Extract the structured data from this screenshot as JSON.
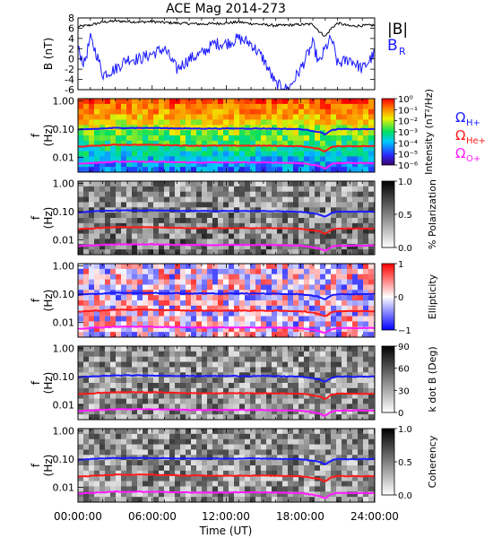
{
  "chart_data": {
    "title": "ACE Mag 2014-273",
    "x_axis": {
      "label": "Time (UT)",
      "ticks": [
        "00:00:00",
        "06:00:00",
        "12:00:00",
        "18:00:00",
        "24:00:00"
      ],
      "range_hours": [
        0,
        24
      ]
    },
    "panels": [
      {
        "type": "line",
        "ylabel": "B (nT)",
        "ylim": [
          -6,
          8
        ],
        "yticks": [
          "8",
          "6",
          "4",
          "2",
          "0",
          "-2",
          "-4",
          "-6"
        ],
        "series": [
          {
            "name": "|B|",
            "color": "#000000",
            "x": [
              0,
              1,
              2,
              3,
              4,
              5,
              6,
              7,
              8,
              9,
              10,
              11,
              12,
              13,
              14,
              15,
              16,
              17,
              18,
              19,
              19.5,
              20,
              20.5,
              21,
              22,
              23,
              24
            ],
            "y": [
              6.3,
              6.6,
              7.2,
              7.4,
              7.3,
              7.2,
              7.3,
              7.1,
              7.0,
              6.9,
              6.8,
              6.9,
              7.0,
              7.2,
              6.9,
              6.7,
              6.5,
              6.6,
              6.7,
              6.8,
              5.4,
              4.4,
              6.0,
              7.0,
              6.4,
              6.5,
              6.6
            ]
          },
          {
            "name": "B_R",
            "color": "#1a1aff",
            "x": [
              0,
              0.5,
              1,
              1.5,
              2,
              3,
              4,
              5,
              6,
              7,
              8,
              9,
              10,
              11,
              12,
              13,
              14,
              15,
              16,
              17,
              18,
              19,
              19.5,
              20,
              20.5,
              21,
              22,
              23,
              24
            ],
            "y": [
              2,
              -1,
              4,
              1,
              -3,
              -2,
              0,
              0,
              1,
              2,
              -2,
              0,
              1,
              3,
              3,
              4,
              3,
              0,
              -5,
              -6,
              -2,
              3,
              -1,
              2,
              4,
              -1,
              0,
              -2,
              1
            ]
          }
        ],
        "legend": [
          "|B|",
          "B",
          "R"
        ]
      },
      {
        "type": "heatmap",
        "ylabel": "f (Hz)",
        "yscale": "log",
        "yticks": [
          "1.00",
          "0.10",
          "0.01"
        ],
        "colorbar": {
          "label": "Intensity (nT²/Hz)",
          "ticks": [
            "10⁰",
            "10⁻¹",
            "10⁻²",
            "10⁻³",
            "10⁻⁴",
            "10⁻⁵",
            "10⁻⁶"
          ]
        },
        "legend": [
          {
            "label": "Ω",
            "sub": "H+",
            "color": "#1a1aff"
          },
          {
            "label": "Ω",
            "sub": "He+",
            "color": "#ff1a1a"
          },
          {
            "label": "Ω",
            "sub": "O+",
            "color": "#ff1aff"
          }
        ]
      },
      {
        "type": "heatmap",
        "ylabel": "f (Hz)",
        "yscale": "log",
        "yticks": [
          "1.00",
          "0.10",
          "0.01"
        ],
        "colorbar": {
          "label": "% Polarization",
          "ticks": [
            "1.0",
            "0.5",
            "0.0"
          ]
        }
      },
      {
        "type": "heatmap",
        "ylabel": "f (Hz)",
        "yscale": "log",
        "yticks": [
          "1.00",
          "0.10",
          "0.01"
        ],
        "colorbar": {
          "label": "Ellipticity",
          "ticks": [
            "1",
            "0",
            "−1"
          ]
        }
      },
      {
        "type": "heatmap",
        "ylabel": "f (Hz)",
        "yscale": "log",
        "yticks": [
          "1.00",
          "0.10",
          "0.01"
        ],
        "colorbar": {
          "label": "k dot B (Deg)",
          "ticks": [
            "90",
            "60",
            "30",
            "0"
          ]
        }
      },
      {
        "type": "heatmap",
        "ylabel": "f (Hz)",
        "yscale": "log",
        "yticks": [
          "1.00",
          "0.10",
          "0.01"
        ],
        "colorbar": {
          "label": "Coherency",
          "ticks": [
            "1.0",
            "0.5",
            "0.0"
          ]
        }
      }
    ],
    "gyrofrequency_curves": [
      {
        "name": "H+",
        "color": "#1a1aff",
        "x": [
          0,
          3,
          6,
          9,
          12,
          15,
          18,
          19.5,
          20,
          20.5,
          21,
          24
        ],
        "f": [
          0.095,
          0.11,
          0.11,
          0.105,
          0.105,
          0.105,
          0.1,
          0.08,
          0.065,
          0.09,
          0.1,
          0.1
        ]
      },
      {
        "name": "He+",
        "color": "#ff1a1a",
        "x": [
          0,
          3,
          6,
          9,
          12,
          15,
          18,
          19.5,
          20,
          20.5,
          21,
          24
        ],
        "f": [
          0.024,
          0.028,
          0.028,
          0.026,
          0.026,
          0.026,
          0.025,
          0.02,
          0.016,
          0.023,
          0.025,
          0.025
        ]
      },
      {
        "name": "O+",
        "color": "#ff1aff",
        "x": [
          0,
          3,
          6,
          9,
          12,
          15,
          18,
          19.5,
          20,
          20.5,
          21,
          24
        ],
        "f": [
          0.006,
          0.007,
          0.007,
          0.0066,
          0.0066,
          0.0066,
          0.0063,
          0.005,
          0.004,
          0.0057,
          0.0063,
          0.0063
        ]
      }
    ]
  }
}
